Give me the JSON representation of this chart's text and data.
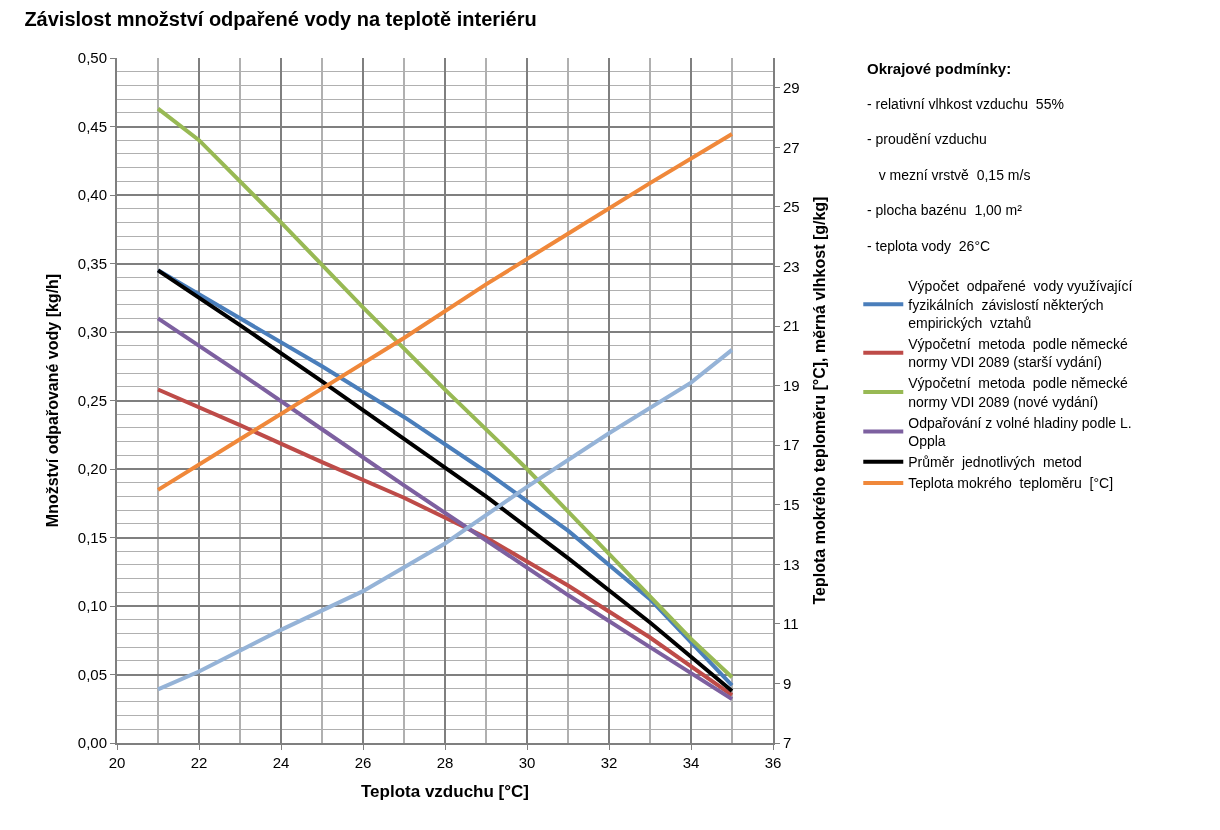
{
  "chart_data": {
    "type": "line",
    "title": "Závislost množství odpařené vody na teplotě interiéru",
    "xlabel": "Teplota vzduchu [°C]",
    "ylabel": "Množství odpařované vody [kg/h]",
    "y2label": "Teplota mokrého teploměru [°C], měrná vlhkost [g/kg]",
    "annotations": [
      "Okrajové podmínky:",
      "- relativní vlhkost vzduchu  55%",
      "- proudění vzduchu",
      "   v mezní vrstvě  0,15 m/s",
      "- plocha bazénu  1,00 m²",
      "- teplota vody  26°C"
    ],
    "xlim": [
      20,
      36
    ],
    "xticks": [
      20,
      22,
      24,
      26,
      28,
      30,
      32,
      34,
      36
    ],
    "ylim": [
      0,
      0.5
    ],
    "yticks": [
      {
        "value": 0,
        "label": "0,00"
      },
      {
        "value": 0.05,
        "label": "0,05"
      },
      {
        "value": 0.1,
        "label": "0,10"
      },
      {
        "value": 0.15,
        "label": "0,15"
      },
      {
        "value": 0.2,
        "label": "0,20"
      },
      {
        "value": 0.25,
        "label": "0,25"
      },
      {
        "value": 0.3,
        "label": "0,30"
      },
      {
        "value": 0.35,
        "label": "0,35"
      },
      {
        "value": 0.4,
        "label": "0,40"
      },
      {
        "value": 0.45,
        "label": "0,45"
      },
      {
        "value": 0.5,
        "label": "0,50"
      }
    ],
    "y2lim": [
      7,
      30
    ],
    "y2ticks": [
      7,
      9,
      11,
      13,
      15,
      17,
      19,
      21,
      23,
      25,
      27,
      29
    ],
    "grid": true,
    "legend": "right",
    "marker": "none",
    "line_style": "solid",
    "series": [
      {
        "name": "Výpočet  odpařené  vody využívající  fyzikálních  závislostí některých  empirických  vztahů",
        "color": "#4a7ebb",
        "x": [
          21,
          23,
          25,
          27,
          29,
          31,
          33,
          35
        ],
        "values": [
          0.345,
          0.31,
          0.275,
          0.238,
          0.198,
          0.155,
          0.105,
          0.042
        ]
      },
      {
        "name": "Výpočetní  metoda  podle německé  normy VDI 2089 (starší vydání)",
        "color": "#be4b48",
        "x": [
          21,
          23,
          25,
          27,
          29,
          31,
          33,
          35
        ],
        "values": [
          0.258,
          0.232,
          0.205,
          0.179,
          0.15,
          0.115,
          0.077,
          0.035
        ]
      },
      {
        "name": "Výpočetní  metoda  podle německé  normy VDI 2089 (nové vydání)",
        "color": "#98b954",
        "x": [
          21,
          22,
          24,
          26,
          28,
          30,
          32,
          34,
          35
        ],
        "values": [
          0.463,
          0.44,
          0.38,
          0.318,
          0.258,
          0.2,
          0.138,
          0.076,
          0.048
        ]
      },
      {
        "name": "Odpařování z volné hladiny podle L. Oppla",
        "color": "#7d60a0",
        "x": [
          21,
          23,
          25,
          27,
          29,
          31,
          33,
          35
        ],
        "values": [
          0.31,
          0.27,
          0.229,
          0.188,
          0.148,
          0.108,
          0.07,
          0.032
        ]
      },
      {
        "name": "Průměr  jednotlivých  metod",
        "color": "#000000",
        "x": [
          21,
          23,
          25,
          27,
          29,
          31,
          33,
          35
        ],
        "values": [
          0.345,
          0.305,
          0.264,
          0.222,
          0.18,
          0.135,
          0.088,
          0.038
        ]
      },
      {
        "name": "Teplota mokrého  teploměru  [°C]",
        "color": "#f0883a",
        "axis": "y2",
        "x": [
          21,
          23,
          25,
          27,
          29,
          31,
          33,
          35
        ],
        "values": [
          15.5,
          17.2,
          18.9,
          20.6,
          22.4,
          24.1,
          25.8,
          27.45
        ]
      },
      {
        "color": "#95b3d7",
        "axis": "y2",
        "x": [
          21,
          22,
          24,
          26,
          28,
          30,
          32,
          34,
          35
        ],
        "values": [
          8.8,
          9.4,
          10.8,
          12.1,
          13.7,
          15.6,
          17.4,
          19.1,
          20.2
        ]
      }
    ]
  }
}
